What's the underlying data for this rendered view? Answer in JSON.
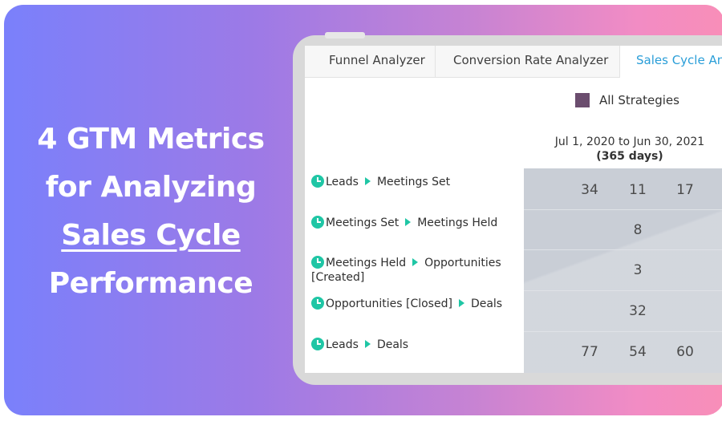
{
  "headline": {
    "line1": "4 GTM Metrics",
    "line2": "for Analyzing",
    "line3": "Sales Cycle",
    "line4": "Performance"
  },
  "tabs": [
    {
      "label": "Funnel Analyzer"
    },
    {
      "label": "Conversion Rate Analyzer"
    },
    {
      "label": "Sales Cycle Analyzer"
    }
  ],
  "legend": {
    "label": "All Strategies",
    "color": "#6b4d6e"
  },
  "date_range": {
    "dates": "Jul 1, 2020 to Jun 30, 2021",
    "days": "(365 days)"
  },
  "rows": [
    {
      "from": "Leads",
      "to": "Meetings Set",
      "to_wrap": "",
      "values": [
        "34",
        "11",
        "17"
      ]
    },
    {
      "from": "Meetings Set",
      "to": "Meetings Held",
      "to_wrap": "",
      "values": [
        "8"
      ]
    },
    {
      "from": "Meetings Held",
      "to": "Opportunities",
      "to_wrap": "[Created]",
      "values": [
        "3"
      ]
    },
    {
      "from": "Opportunities [Closed]",
      "to": "Deals",
      "to_wrap": "",
      "values": [
        "32"
      ]
    },
    {
      "from": "Leads",
      "to": "Deals",
      "to_wrap": "",
      "values": [
        "77",
        "54",
        "60"
      ]
    }
  ],
  "colors": {
    "accent": "#1fc6a5",
    "active_tab": "#2a9ed8",
    "panel": "#c9ced6"
  }
}
